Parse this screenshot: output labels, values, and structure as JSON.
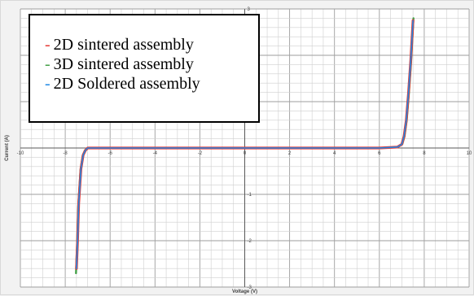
{
  "chart_data": {
    "type": "line",
    "title": "",
    "xlabel": "Voltage (V)",
    "ylabel": "Current (A)",
    "xlim": [
      -10,
      10
    ],
    "ylim": [
      -3,
      3
    ],
    "x_ticks": [
      -10,
      -8,
      -6,
      -4,
      -2,
      0,
      2,
      4,
      6,
      8,
      10
    ],
    "y_ticks": [
      3,
      1,
      -1,
      -2,
      -3
    ],
    "x_tick_labels": [
      "-10",
      "-8",
      "-6",
      "-4",
      "-2",
      "0",
      "2",
      "4",
      "6",
      "8",
      "10"
    ],
    "y_tick_labels": [
      "3",
      "1",
      "-1",
      "-2",
      "-3"
    ],
    "grid": true,
    "legend_position": "top-left",
    "series": [
      {
        "name": "2D sintered assembly",
        "color": "#e53935",
        "x": [
          -7.5,
          -7.45,
          -7.4,
          -7.3,
          -7.2,
          -7.1,
          -7.0,
          -6.5,
          -6,
          -4,
          -2,
          0,
          2,
          4,
          6,
          6.8,
          7.0,
          7.1,
          7.2,
          7.3,
          7.4,
          7.5
        ],
        "y": [
          -2.6,
          -2.0,
          -1.2,
          -0.45,
          -0.15,
          -0.05,
          0.0,
          0.0,
          0.0,
          0.0,
          0.0,
          0.0,
          0.0,
          0.0,
          0.0,
          0.02,
          0.08,
          0.25,
          0.6,
          1.2,
          1.9,
          2.75
        ]
      },
      {
        "name": "3D sintered assembly",
        "color": "#43a047",
        "x": [
          -7.52,
          -7.47,
          -7.42,
          -7.32,
          -7.22,
          -7.12,
          -7.0,
          -6.5,
          -6,
          -4,
          -2,
          0,
          2,
          4,
          6,
          6.8,
          7.02,
          7.12,
          7.22,
          7.32,
          7.42,
          7.52
        ],
        "y": [
          -2.7,
          -2.05,
          -1.25,
          -0.48,
          -0.16,
          -0.05,
          0.0,
          0.0,
          0.0,
          0.0,
          0.0,
          0.0,
          0.0,
          0.0,
          0.0,
          0.02,
          0.08,
          0.25,
          0.6,
          1.2,
          1.9,
          2.8
        ]
      },
      {
        "name": "2D Soldered assembly",
        "color": "#1e88e5",
        "x": [
          -7.5,
          -7.45,
          -7.4,
          -7.3,
          -7.2,
          -7.1,
          -7.0,
          -6.5,
          -6,
          -4,
          -2,
          0,
          2,
          4,
          6,
          6.8,
          7.0,
          7.1,
          7.2,
          7.3,
          7.4,
          7.5
        ],
        "y": [
          -2.6,
          -2.0,
          -1.2,
          -0.45,
          -0.15,
          -0.05,
          0.0,
          0.0,
          0.0,
          0.0,
          0.0,
          0.0,
          0.0,
          0.0,
          0.0,
          0.02,
          0.08,
          0.25,
          0.6,
          1.2,
          1.9,
          2.75
        ]
      }
    ]
  },
  "legend": {
    "dash": "-",
    "items": [
      "2D sintered assembly",
      "3D sintered assembly",
      "2D Soldered assembly"
    ]
  }
}
